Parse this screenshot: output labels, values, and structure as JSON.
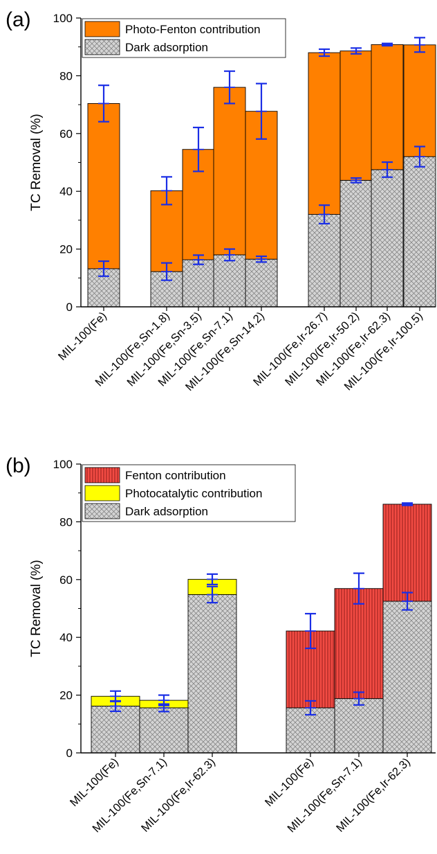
{
  "chart_data": [
    {
      "type": "bar",
      "stacked": true,
      "panel_label": "(a)",
      "ylabel": "TC Removal (%)",
      "ylim": [
        0,
        100
      ],
      "yticks": [
        0,
        20,
        40,
        60,
        80,
        100
      ],
      "categories": [
        "MIL-100(Fe)",
        "MIL-100(Fe,Sn-1.8)",
        "MIL-100(Fe,Sn-3.5)",
        "MIL-100(Fe,Sn-7.1)",
        "MIL-100(Fe,Sn-14.2)",
        "MIL-100(Fe,Ir-26.7)",
        "MIL-100(Fe,Ir-50.2)",
        "MIL-100(Fe,Ir-62.3)",
        "MIL-100(Fe,Ir-100.5)"
      ],
      "groups": [
        [
          0
        ],
        [
          1,
          2,
          3,
          4
        ],
        [
          5,
          6,
          7,
          8
        ]
      ],
      "series": [
        {
          "name": "Dark adsorption",
          "values": [
            13.2,
            12.2,
            16.3,
            18.0,
            16.5,
            32.0,
            43.8,
            47.5,
            52.0
          ],
          "errors": [
            2.6,
            3.0,
            1.6,
            2.0,
            1.0,
            3.2,
            0.8,
            2.6,
            3.5
          ]
        },
        {
          "name": "Photo-Fenton contribution",
          "values": [
            57.2,
            28.0,
            38.2,
            58.0,
            51.2,
            56.0,
            44.8,
            43.3,
            38.7
          ],
          "errors": [
            6.3,
            4.8,
            7.6,
            5.6,
            9.6,
            1.2,
            1.0,
            0.4,
            2.5
          ]
        }
      ],
      "legend_position": "top-left"
    },
    {
      "type": "bar",
      "stacked": true,
      "panel_label": "(b)",
      "ylabel": "TC Removal (%)",
      "ylim": [
        0,
        100
      ],
      "yticks": [
        0,
        20,
        40,
        60,
        80,
        100
      ],
      "categories": [
        "MIL-100(Fe)",
        "MIL-100(Fe,Sn-7.1)",
        "MIL-100(Fe,Ir-62.3)",
        "MIL-100(Fe)",
        "MIL-100(Fe,Sn-7.1)",
        "MIL-100(Fe,Ir-62.3)"
      ],
      "groups": [
        [
          0,
          1,
          2
        ],
        [
          3,
          4,
          5
        ]
      ],
      "series": [
        {
          "name": "Dark adsorption",
          "values": [
            16.2,
            15.6,
            54.8,
            15.6,
            18.8,
            52.5
          ],
          "errors": [
            1.8,
            1.3,
            2.8,
            2.4,
            2.2,
            3.0
          ]
        },
        {
          "name": "Photocatalytic contribution",
          "values": [
            3.4,
            2.6,
            5.3,
            0,
            0,
            0
          ],
          "errors": [
            1.8,
            1.8,
            1.8,
            0,
            0,
            0
          ]
        },
        {
          "name": "Fenton contribution",
          "values": [
            0,
            0,
            0,
            26.6,
            38.1,
            33.6
          ],
          "errors": [
            0,
            0,
            0,
            6.0,
            5.3,
            0.4
          ]
        }
      ],
      "legend_position": "top-left"
    }
  ]
}
